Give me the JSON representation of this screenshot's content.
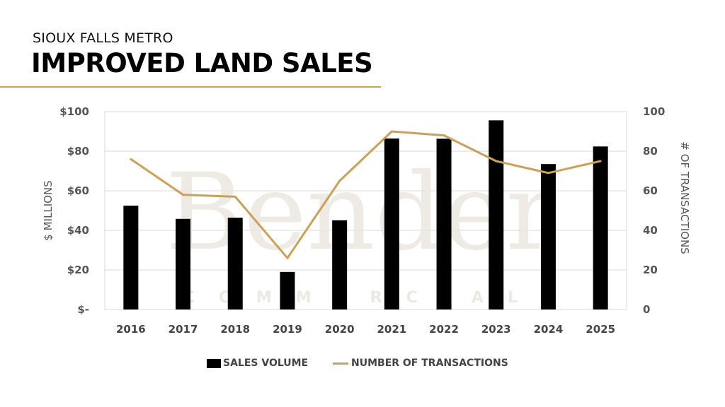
{
  "header": {
    "subtitle": "SIOUX FALLS METRO",
    "title": "IMPROVED LAND SALES"
  },
  "watermark": {
    "name": "Bender",
    "tagline": "COMMERCIAL"
  },
  "colors": {
    "bars": "#000000",
    "line": "#c9a15a",
    "accent": "#c9a15a",
    "grid": "#d9d9d9"
  },
  "chart_data": {
    "type": "bar+line",
    "categories": [
      "2016",
      "2017",
      "2018",
      "2019",
      "2020",
      "2021",
      "2022",
      "2023",
      "2024",
      "2025"
    ],
    "series": [
      {
        "name": "SALES VOLUME",
        "type": "bar",
        "axis": "left",
        "values": [
          52.5,
          45.8,
          46.4,
          19.0,
          45.1,
          86.4,
          86.3,
          95.6,
          73.5,
          82.4
        ]
      },
      {
        "name": "NUMBER OF TRANSACTIONS",
        "type": "line",
        "axis": "right",
        "values": [
          76,
          58,
          57,
          26,
          65,
          90,
          88,
          75,
          69,
          75
        ]
      }
    ],
    "ylabel": "$ MILLIONS",
    "ylabel_right": "# OF TRANSACTIONS",
    "ylim": [
      0,
      100
    ],
    "ylim_right": [
      0,
      100
    ],
    "yticks": [
      "$-",
      "$20",
      "$40",
      "$60",
      "$80",
      "$100"
    ],
    "yticks_right": [
      "0",
      "20",
      "40",
      "60",
      "80",
      "100"
    ],
    "grid": true,
    "legend": "bottom"
  }
}
